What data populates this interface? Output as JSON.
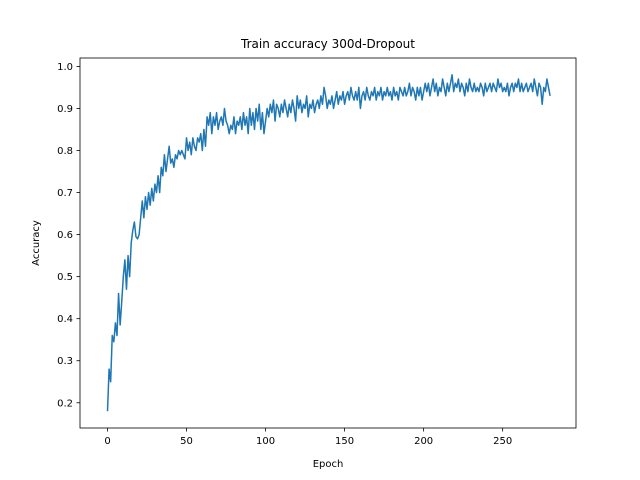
{
  "chart_data": {
    "type": "line",
    "title": "Train accuracy 300d-Dropout",
    "xlabel": "Epoch",
    "ylabel": "Accuracy",
    "xlim": [
      -17.4,
      296.4
    ],
    "ylim": [
      0.14,
      1.02
    ],
    "xticks": [
      0,
      50,
      100,
      150,
      200,
      250
    ],
    "yticks": [
      0.2,
      0.3,
      0.4,
      0.5,
      0.6,
      0.7,
      0.8,
      0.9,
      1.0
    ],
    "grid": false,
    "legend": "none",
    "series": [
      {
        "color": "#1f77b4",
        "x_start": 0,
        "x_step": 1,
        "values": [
          0.18,
          0.28,
          0.25,
          0.36,
          0.345,
          0.39,
          0.36,
          0.46,
          0.385,
          0.44,
          0.5,
          0.54,
          0.47,
          0.55,
          0.5,
          0.58,
          0.61,
          0.63,
          0.595,
          0.59,
          0.6,
          0.64,
          0.68,
          0.64,
          0.69,
          0.66,
          0.7,
          0.67,
          0.71,
          0.68,
          0.72,
          0.7,
          0.74,
          0.7,
          0.76,
          0.74,
          0.79,
          0.75,
          0.78,
          0.81,
          0.77,
          0.78,
          0.76,
          0.79,
          0.78,
          0.8,
          0.79,
          0.8,
          0.79,
          0.78,
          0.83,
          0.8,
          0.82,
          0.79,
          0.83,
          0.81,
          0.8,
          0.83,
          0.82,
          0.84,
          0.8,
          0.85,
          0.81,
          0.88,
          0.86,
          0.89,
          0.84,
          0.88,
          0.86,
          0.89,
          0.85,
          0.87,
          0.88,
          0.86,
          0.9,
          0.87,
          0.86,
          0.84,
          0.86,
          0.85,
          0.88,
          0.84,
          0.87,
          0.86,
          0.88,
          0.85,
          0.89,
          0.86,
          0.88,
          0.84,
          0.9,
          0.86,
          0.89,
          0.85,
          0.9,
          0.87,
          0.91,
          0.85,
          0.89,
          0.84,
          0.87,
          0.9,
          0.88,
          0.91,
          0.89,
          0.92,
          0.87,
          0.91,
          0.9,
          0.88,
          0.91,
          0.89,
          0.92,
          0.9,
          0.88,
          0.91,
          0.89,
          0.92,
          0.9,
          0.87,
          0.93,
          0.9,
          0.92,
          0.89,
          0.91,
          0.9,
          0.93,
          0.88,
          0.91,
          0.9,
          0.92,
          0.89,
          0.91,
          0.92,
          0.9,
          0.93,
          0.91,
          0.95,
          0.93,
          0.9,
          0.92,
          0.91,
          0.93,
          0.9,
          0.92,
          0.94,
          0.91,
          0.93,
          0.92,
          0.94,
          0.91,
          0.93,
          0.94,
          0.92,
          0.95,
          0.93,
          0.92,
          0.94,
          0.92,
          0.95,
          0.9,
          0.93,
          0.94,
          0.92,
          0.95,
          0.93,
          0.92,
          0.94,
          0.93,
          0.95,
          0.92,
          0.94,
          0.93,
          0.95,
          0.92,
          0.94,
          0.93,
          0.95,
          0.93,
          0.94,
          0.92,
          0.95,
          0.93,
          0.94,
          0.92,
          0.95,
          0.94,
          0.93,
          0.95,
          0.93,
          0.94,
          0.96,
          0.93,
          0.95,
          0.94,
          0.92,
          0.95,
          0.93,
          0.95,
          0.92,
          0.94,
          0.96,
          0.94,
          0.96,
          0.93,
          0.95,
          0.97,
          0.94,
          0.96,
          0.93,
          0.95,
          0.94,
          0.97,
          0.95,
          0.93,
          0.96,
          0.94,
          0.96,
          0.98,
          0.94,
          0.96,
          0.95,
          0.97,
          0.94,
          0.96,
          0.95,
          0.93,
          0.96,
          0.94,
          0.97,
          0.95,
          0.94,
          0.96,
          0.94,
          0.95,
          0.94,
          0.96,
          0.95,
          0.93,
          0.96,
          0.94,
          0.95,
          0.96,
          0.94,
          0.96,
          0.95,
          0.94,
          0.97,
          0.95,
          0.96,
          0.94,
          0.95,
          0.94,
          0.96,
          0.93,
          0.95,
          0.96,
          0.94,
          0.96,
          0.95,
          0.97,
          0.94,
          0.96,
          0.94,
          0.95,
          0.96,
          0.94,
          0.95,
          0.96,
          0.94,
          0.97,
          0.95,
          0.93,
          0.96,
          0.95,
          0.91,
          0.95,
          0.94,
          0.97,
          0.95,
          0.93
        ]
      }
    ]
  }
}
